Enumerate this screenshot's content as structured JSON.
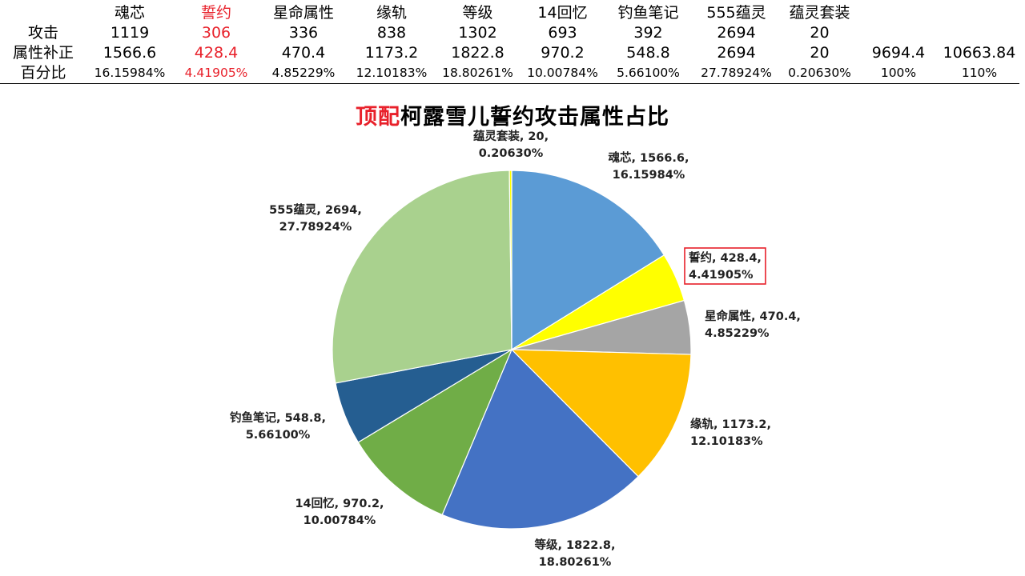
{
  "table": {
    "header": [
      "魂芯",
      "誓约",
      "星命属性",
      "缘轨",
      "等级",
      "14回忆",
      "钓鱼笔记",
      "555蕴灵",
      "蕴灵套装"
    ],
    "rows": [
      {
        "label": "攻击",
        "cells": [
          "1119",
          "306",
          "336",
          "838",
          "1302",
          "693",
          "392",
          "2694",
          "20"
        ],
        "extra": [
          "",
          ""
        ]
      },
      {
        "label": "属性补正",
        "cells": [
          "1566.6",
          "428.4",
          "470.4",
          "1173.2",
          "1822.8",
          "970.2",
          "548.8",
          "2694",
          "20"
        ],
        "extra": [
          "9694.4",
          "10663.84"
        ]
      },
      {
        "label": "百分比",
        "cells": [
          "16.15984%",
          "4.41905%",
          "4.85229%",
          "12.10183%",
          "18.80261%",
          "10.00784%",
          "5.66100%",
          "27.78924%",
          "0.20630%"
        ],
        "extra": [
          "100%",
          "110%"
        ]
      }
    ],
    "highlight_color": "#e8202a"
  },
  "chart": {
    "title_prefix": "顶配",
    "title_rest": "柯露雪儿誓约攻击属性占比"
  },
  "chart_data": {
    "type": "pie",
    "title": "顶配柯露雪儿誓约攻击属性占比",
    "slices": [
      {
        "name": "魂芯",
        "value": 1566.6,
        "percent": "16.15984%",
        "color": "#5b9bd5"
      },
      {
        "name": "誓约",
        "value": 428.4,
        "percent": "4.41905%",
        "color": "#ffff00",
        "highlighted": true
      },
      {
        "name": "星命属性",
        "value": 470.4,
        "percent": "4.85229%",
        "color": "#a5a5a5"
      },
      {
        "name": "缘轨",
        "value": 1173.2,
        "percent": "12.10183%",
        "color": "#ffc000"
      },
      {
        "name": "等级",
        "value": 1822.8,
        "percent": "18.80261%",
        "color": "#4472c4"
      },
      {
        "name": "14回忆",
        "value": 970.2,
        "percent": "10.00784%",
        "color": "#70ad47"
      },
      {
        "name": "钓鱼笔记",
        "value": 548.8,
        "percent": "5.66100%",
        "color": "#255e91"
      },
      {
        "name": "555蕴灵",
        "value": 2694,
        "percent": "27.78924%",
        "color": "#a9d18e"
      },
      {
        "name": "蕴灵套装",
        "value": 20,
        "percent": "0.20630%",
        "color": "#ffff00"
      }
    ]
  }
}
